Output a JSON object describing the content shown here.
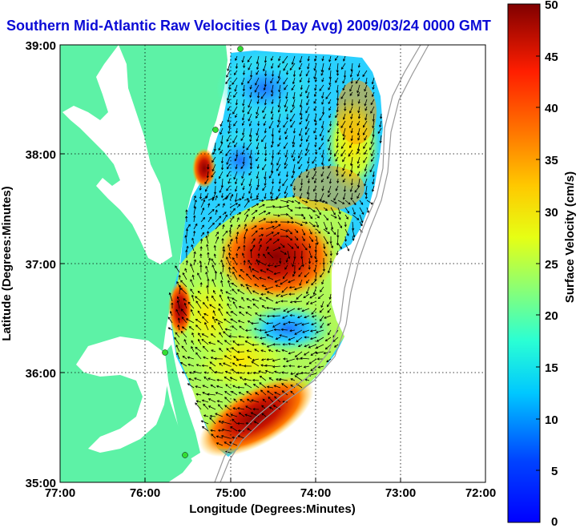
{
  "title": "Southern Mid-Atlantic Raw Velocities (1 Day Avg) 2009/03/24 0000 GMT",
  "map": {
    "xlabel": "Longitude (Degrees:Minutes)",
    "ylabel": "Latitude (Degrees:Minutes)",
    "x_ticks": [
      "77:00",
      "76:00",
      "75:00",
      "74:00",
      "73:00",
      "72:00"
    ],
    "y_ticks": [
      "39:00",
      "38:00",
      "37:00",
      "36:00",
      "35:00"
    ],
    "land_color": "#5df2a6",
    "water_color": "#ffffff",
    "station_color": "#33dd33"
  },
  "colorbar": {
    "label": "Surface Velocity (cm/s)",
    "ticks": [
      "50",
      "45",
      "40",
      "35",
      "30",
      "25",
      "20",
      "15",
      "10",
      "5",
      "0"
    ],
    "min": 0,
    "max": 50
  }
}
